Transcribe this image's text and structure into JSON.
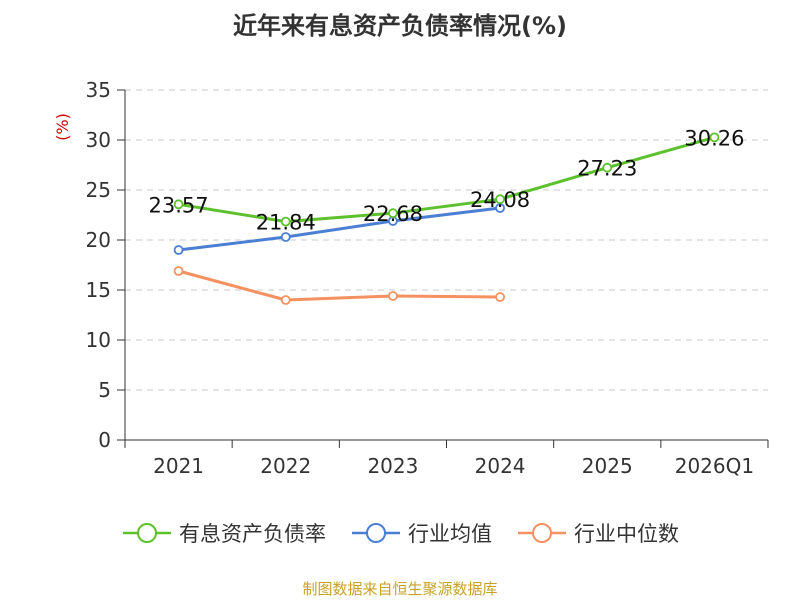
{
  "title": "近年来有息资产负债率情况(%)",
  "source": "制图数据来自恒生聚源数据库",
  "colors": {
    "series1": "#5dc12d",
    "series2": "#4a7fd4",
    "series3": "#f59161",
    "axis": "#333333",
    "grid": "#c8c8c8",
    "unit": "#cc0000",
    "text": "#333333"
  },
  "chart_data": {
    "type": "line",
    "title": "近年来有息资产负债率情况(%)",
    "ylabel": "(%)",
    "xlabel": "",
    "ylim": [
      0,
      35
    ],
    "yticks": [
      0,
      5,
      10,
      15,
      20,
      25,
      30,
      35
    ],
    "categories": [
      "2021",
      "2022",
      "2023",
      "2024",
      "2025",
      "2026Q1"
    ],
    "grid": true,
    "legend_position": "bottom",
    "series": [
      {
        "name": "有息资产负债率",
        "values": [
          23.57,
          21.84,
          22.68,
          24.08,
          27.23,
          30.26
        ],
        "labels": [
          "23.57",
          "21.84",
          "22.68",
          "24.08",
          "27.23",
          "30.26"
        ],
        "color": "#5dc12d"
      },
      {
        "name": "行业均值",
        "values": [
          19.0,
          20.3,
          21.9,
          23.2,
          null,
          null
        ],
        "color": "#4a7fd4"
      },
      {
        "name": "行业中位数",
        "values": [
          16.9,
          14.0,
          14.4,
          14.3,
          null,
          null
        ],
        "color": "#f59161"
      }
    ]
  }
}
